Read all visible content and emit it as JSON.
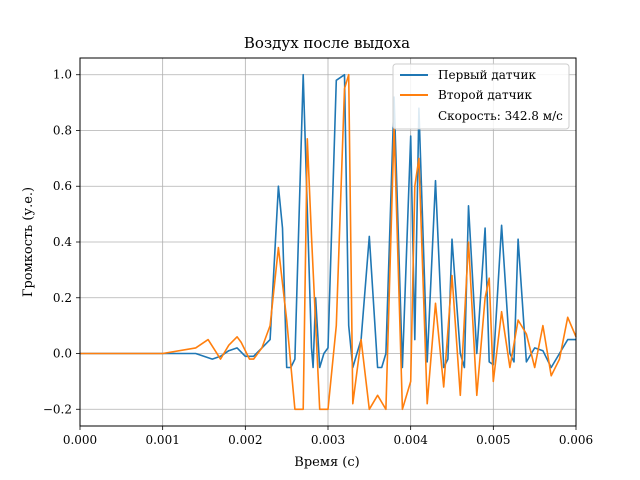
{
  "chart_data": {
    "type": "line",
    "title": "Воздух после выдоха",
    "xlabel": "Время (с)",
    "ylabel": "Громкость (у.е.)",
    "xlim": [
      0,
      0.006
    ],
    "ylim": [
      -0.26,
      1.06
    ],
    "xticks": [
      0,
      0.001,
      0.002,
      0.003,
      0.004,
      0.005,
      0.006
    ],
    "xtick_labels": [
      "0.000",
      "0.001",
      "0.002",
      "0.003",
      "0.004",
      "0.005",
      "0.006"
    ],
    "yticks": [
      -0.2,
      0,
      0.2,
      0.4,
      0.6,
      0.8,
      1.0
    ],
    "ytick_labels": [
      "−0.2",
      "0.0",
      "0.2",
      "0.4",
      "0.6",
      "0.8",
      "1.0"
    ],
    "grid": true,
    "legend_position": "top-right",
    "legend_note": "Скорость: 342.8 м/с",
    "series": [
      {
        "name": "Первый датчик",
        "color": "#1f77b4",
        "x": [
          0,
          0.0005,
          0.001,
          0.0014,
          0.0016,
          0.0017,
          0.0018,
          0.0019,
          0.002,
          0.0021,
          0.0022,
          0.0023,
          0.0024,
          0.00245,
          0.0025,
          0.00255,
          0.0026,
          0.0027,
          0.0028,
          0.00282,
          0.00285,
          0.0029,
          0.00295,
          0.003,
          0.0031,
          0.0032,
          0.00325,
          0.0033,
          0.00335,
          0.0034,
          0.0035,
          0.0036,
          0.00365,
          0.0037,
          0.0038,
          0.0039,
          0.004,
          0.00405,
          0.0041,
          0.0042,
          0.0043,
          0.0044,
          0.00445,
          0.0045,
          0.0046,
          0.00465,
          0.0047,
          0.0048,
          0.0049,
          0.00495,
          0.005,
          0.0051,
          0.0052,
          0.00525,
          0.0053,
          0.0054,
          0.0055,
          0.0056,
          0.0057,
          0.0058,
          0.0059,
          0.006
        ],
        "y": [
          0,
          0,
          0,
          0,
          -0.02,
          -0.01,
          0.01,
          0.02,
          -0.01,
          -0.01,
          0.02,
          0.05,
          0.6,
          0.45,
          -0.05,
          -0.05,
          -0.02,
          1.0,
          0.02,
          -0.05,
          0.2,
          -0.05,
          0,
          0.02,
          0.98,
          1.0,
          0.1,
          -0.05,
          0,
          0.05,
          0.42,
          -0.05,
          -0.05,
          0,
          0.92,
          -0.05,
          0.78,
          0.05,
          0.88,
          -0.03,
          0.62,
          -0.05,
          -0.02,
          0.41,
          0,
          -0.05,
          0.53,
          0,
          0.45,
          -0.03,
          -0.04,
          0.46,
          0,
          -0.03,
          0.41,
          -0.03,
          0.02,
          0.01,
          -0.05,
          0,
          0.05,
          0.05
        ]
      },
      {
        "name": "Второй датчик",
        "color": "#ff7f0e",
        "x": [
          0,
          0.0005,
          0.001,
          0.0014,
          0.00155,
          0.0017,
          0.0018,
          0.0019,
          0.00195,
          0.00205,
          0.0021,
          0.0022,
          0.0023,
          0.0024,
          0.0025,
          0.0026,
          0.0027,
          0.00275,
          0.0028,
          0.0029,
          0.003,
          0.0031,
          0.0032,
          0.00325,
          0.0033,
          0.0034,
          0.0035,
          0.0036,
          0.0037,
          0.0038,
          0.0039,
          0.004,
          0.00405,
          0.0041,
          0.0042,
          0.0043,
          0.0044,
          0.0045,
          0.0046,
          0.0047,
          0.0048,
          0.0049,
          0.00495,
          0.005,
          0.0051,
          0.0052,
          0.0053,
          0.0054,
          0.0055,
          0.0056,
          0.0057,
          0.0058,
          0.0059,
          0.006
        ],
        "y": [
          0,
          0,
          0,
          0.02,
          0.05,
          -0.02,
          0.03,
          0.06,
          0.04,
          -0.02,
          -0.02,
          0.02,
          0.1,
          0.38,
          0.12,
          -0.2,
          -0.2,
          0.77,
          0.42,
          -0.2,
          -0.2,
          0.1,
          0.95,
          1.0,
          -0.18,
          0.05,
          -0.2,
          -0.15,
          -0.2,
          0.81,
          -0.2,
          -0.1,
          0.6,
          0.7,
          -0.18,
          0.18,
          -0.12,
          0.28,
          -0.15,
          0.4,
          -0.15,
          0.2,
          0.27,
          -0.1,
          0.15,
          -0.05,
          0.12,
          0.07,
          -0.05,
          0.1,
          -0.08,
          -0.02,
          0.13,
          0.06
        ]
      }
    ]
  }
}
